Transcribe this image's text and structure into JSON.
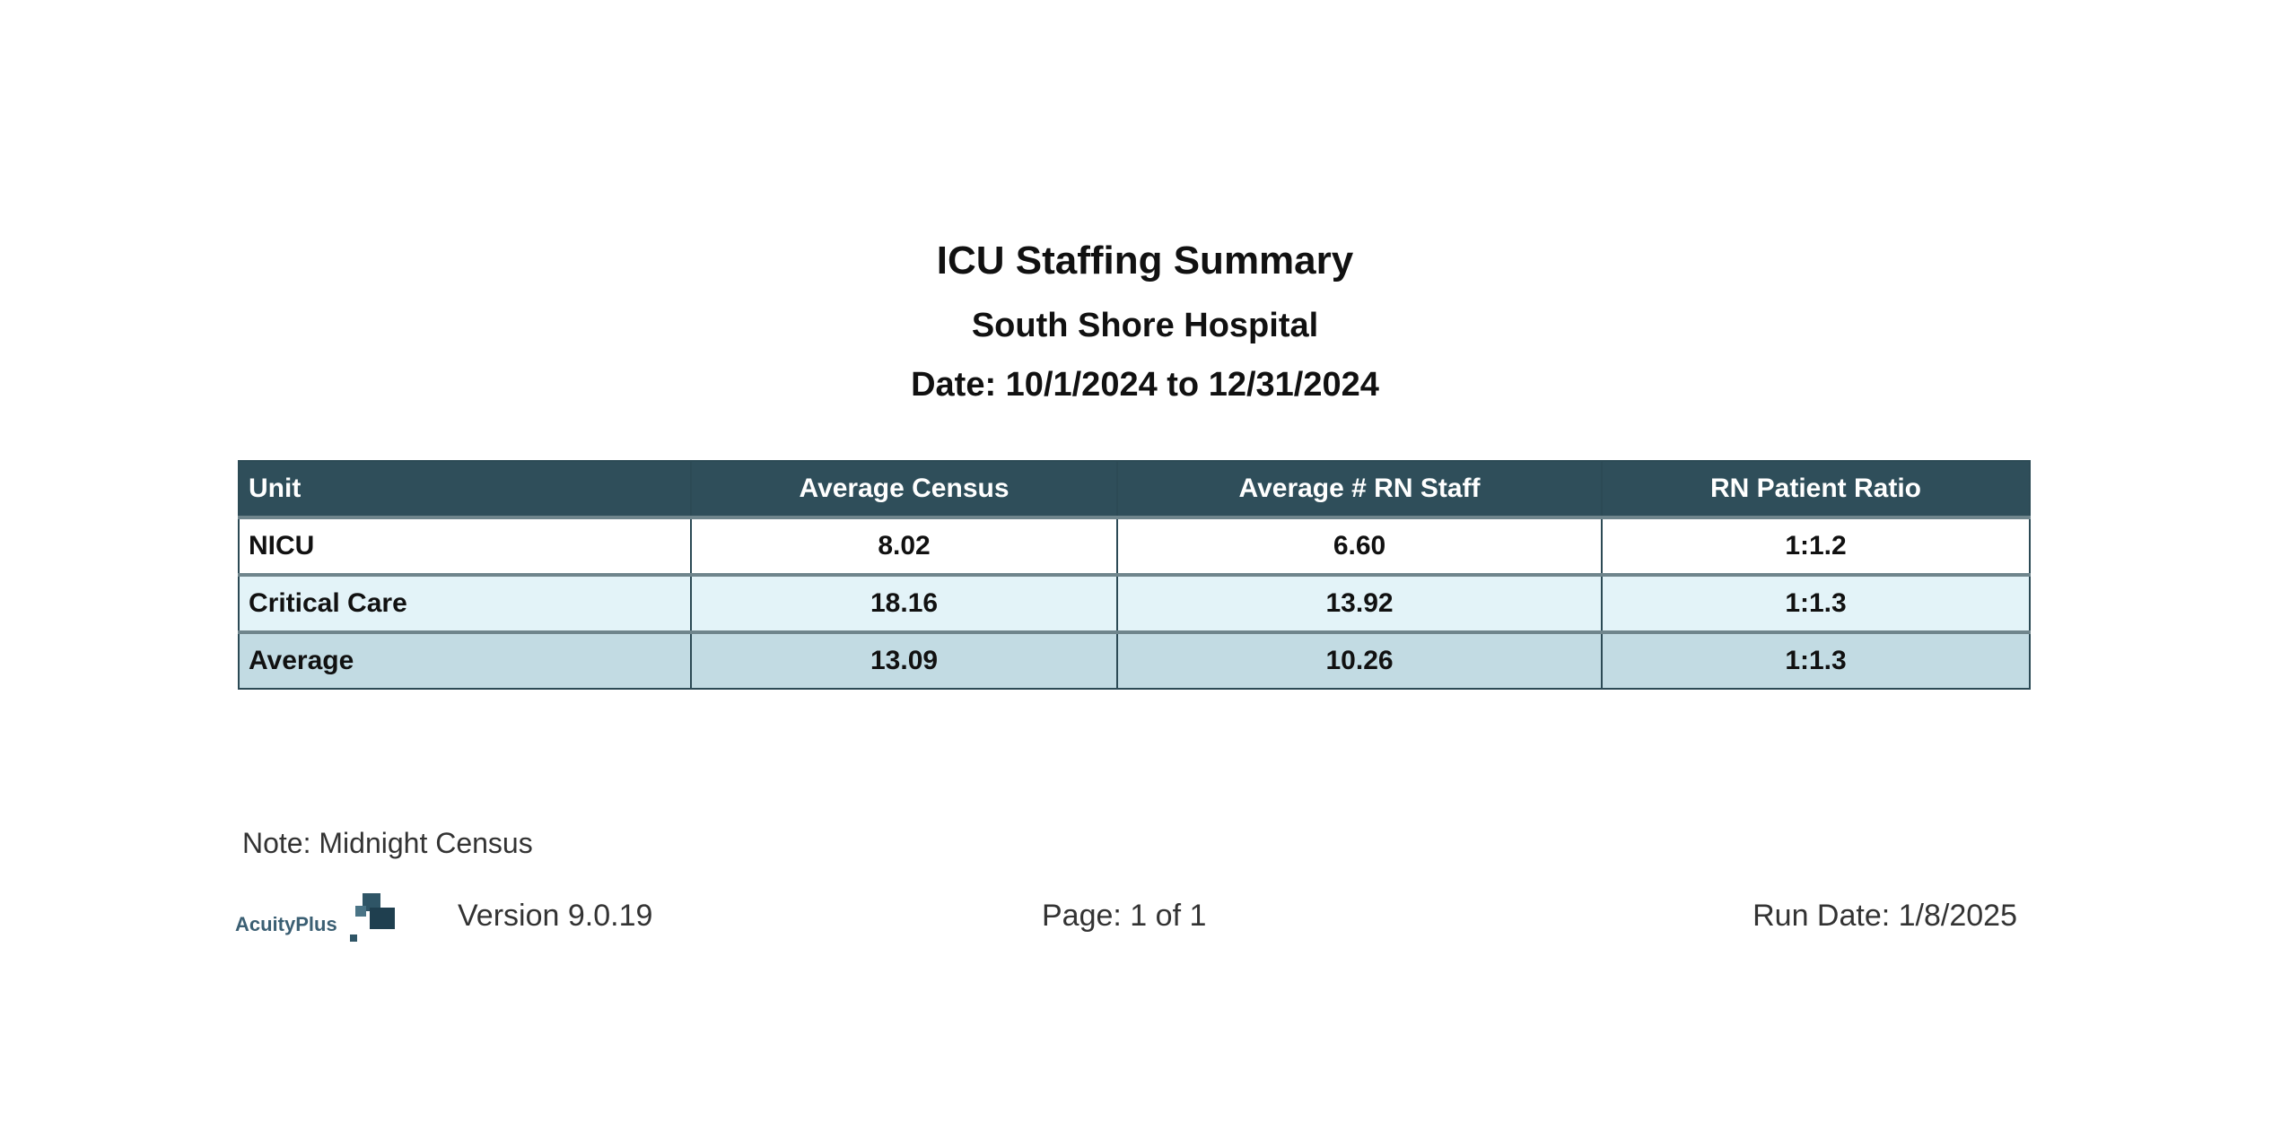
{
  "header": {
    "title": "ICU Staffing Summary",
    "subtitle": "South Shore Hospital",
    "date_range": "Date: 10/1/2024 to 12/31/2024"
  },
  "table": {
    "columns": [
      "Unit",
      "Average Census",
      "Average # RN Staff",
      "RN Patient Ratio"
    ],
    "rows": [
      [
        "NICU",
        "8.02",
        "6.60",
        "1:1.2"
      ],
      [
        "Critical Care",
        "18.16",
        "13.92",
        "1:1.3"
      ],
      [
        "Average",
        "13.09",
        "10.26",
        "1:1.3"
      ]
    ]
  },
  "note": "Note: Midnight Census",
  "footer": {
    "logo_text": "AcuityPlus",
    "version": "Version 9.0.19",
    "page": "Page: 1 of 1",
    "run_date": "Run Date: 1/8/2025"
  },
  "colors": {
    "header_bg": "#2f4e5a",
    "row_alt": "#e3f3f8",
    "row_avg": "#c2dbe3"
  }
}
